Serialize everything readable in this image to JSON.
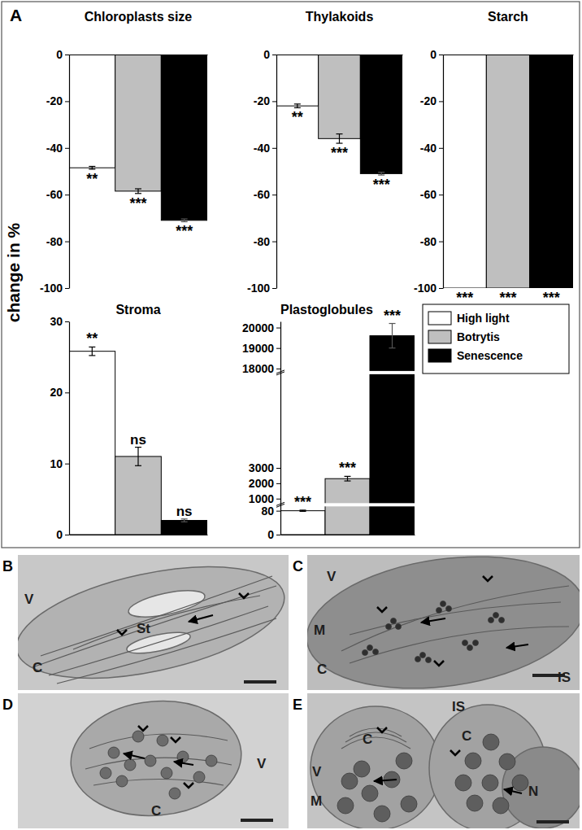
{
  "figure": {
    "panel_label": "A",
    "y_label": "change in %",
    "legend_entries": [
      {
        "name": "High light",
        "color": "#ffffff"
      },
      {
        "name": "Botrytis",
        "color": "#bfbfbf"
      },
      {
        "name": "Senescence",
        "color": "#000000"
      }
    ]
  },
  "chart_data": [
    {
      "type": "bar",
      "title": "Chloroplasts size",
      "categories": [
        null,
        null,
        null
      ],
      "values": [
        -48.5,
        -58.5,
        -71
      ],
      "errors": [
        0.6,
        1,
        0.6
      ],
      "colors": [
        "#ffffff",
        "#bfbfbf",
        "#000000"
      ],
      "significance": [
        "**",
        "***",
        "***"
      ],
      "ylim": [
        -100,
        0
      ],
      "yticks": [
        0,
        -20,
        -40,
        -60,
        -80,
        -100
      ]
    },
    {
      "type": "bar",
      "title": "Thylakoids",
      "categories": [
        null,
        null,
        null
      ],
      "values": [
        -22,
        -36,
        -51
      ],
      "errors": [
        0.8,
        2,
        0.6
      ],
      "colors": [
        "#ffffff",
        "#bfbfbf",
        "#000000"
      ],
      "significance": [
        "**",
        "***",
        "***"
      ],
      "ylim": [
        -100,
        0
      ],
      "yticks": [
        0,
        -20,
        -40,
        -60,
        -80,
        -100
      ]
    },
    {
      "type": "bar",
      "title": "Starch",
      "categories": [
        null,
        null,
        null
      ],
      "values": [
        -100,
        -100,
        -100
      ],
      "colors": [
        "#ffffff",
        "#bfbfbf",
        "#000000"
      ],
      "significance": [
        "***",
        "***",
        "***"
      ],
      "ylim": [
        -100,
        0
      ],
      "yticks": [
        0,
        -20,
        -40,
        -60,
        -80,
        -100
      ]
    },
    {
      "type": "bar",
      "title": "Stroma",
      "categories": [
        null,
        null,
        null
      ],
      "values": [
        25.8,
        11,
        2
      ],
      "errors": [
        0.6,
        1.3,
        0.2
      ],
      "colors": [
        "#ffffff",
        "#bfbfbf",
        "#000000"
      ],
      "significance": [
        "**",
        "ns",
        "ns"
      ],
      "ylim": [
        0,
        30
      ],
      "yticks": [
        0,
        10,
        20,
        30
      ]
    },
    {
      "type": "bar",
      "title": "Plastoglobules",
      "categories": [
        null,
        null,
        null
      ],
      "values": [
        80,
        2300,
        19600
      ],
      "errors": [
        2,
        150,
        600
      ],
      "colors": [
        "#ffffff",
        "#bfbfbf",
        "#000000"
      ],
      "significance": [
        "***",
        "***",
        "***"
      ],
      "ylim": [
        0,
        20300
      ],
      "yticks": [
        0,
        80,
        1000,
        2000,
        3000,
        18000,
        19000,
        20000
      ],
      "axis_breaks": [
        [
          100,
          600
        ],
        [
          9200,
          17800
        ]
      ]
    }
  ],
  "micrographs": [
    {
      "panel": "B",
      "labels": [
        "V",
        "St",
        "C"
      ]
    },
    {
      "panel": "C",
      "labels": [
        "V",
        "M",
        "C",
        "IS"
      ]
    },
    {
      "panel": "D",
      "labels": [
        "V",
        "C"
      ]
    },
    {
      "panel": "E",
      "labels": [
        "IS",
        "V",
        "C",
        "C",
        "M",
        "N"
      ]
    }
  ]
}
